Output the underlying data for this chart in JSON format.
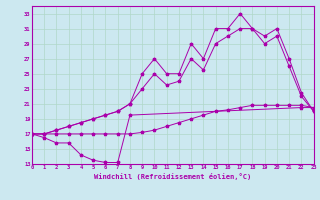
{
  "xlabel": "Windchill (Refroidissement éolien,°C)",
  "background_color": "#cce8f0",
  "grid_color": "#b0d8c8",
  "line_color": "#aa00aa",
  "xmin": 0,
  "xmax": 23,
  "ymin": 13,
  "ymax": 34,
  "yticks": [
    13,
    15,
    17,
    19,
    21,
    23,
    25,
    27,
    29,
    31,
    33
  ],
  "xticks": [
    0,
    1,
    2,
    3,
    4,
    5,
    6,
    7,
    8,
    9,
    10,
    11,
    12,
    13,
    14,
    15,
    16,
    17,
    18,
    19,
    20,
    21,
    22,
    23
  ],
  "line_dip_x": [
    0,
    1,
    2,
    3,
    4,
    5,
    6,
    7,
    8,
    22,
    23
  ],
  "line_dip_y": [
    17,
    16.5,
    15.8,
    15.8,
    14.2,
    13.5,
    13.2,
    13.2,
    19.5,
    20.5,
    20.5
  ],
  "line_flat_x": [
    0,
    1,
    2,
    3,
    4,
    5,
    6,
    7,
    8,
    9,
    10,
    11,
    12,
    13,
    14,
    15,
    16,
    17,
    18,
    19,
    20,
    21,
    22,
    23
  ],
  "line_flat_y": [
    17,
    17,
    17,
    17,
    17,
    17,
    17,
    17,
    17,
    17.2,
    17.5,
    18,
    18.5,
    19,
    19.5,
    20,
    20.2,
    20.5,
    20.8,
    20.8,
    20.8,
    20.8,
    20.8,
    20.5
  ],
  "line_hi_x": [
    0,
    1,
    2,
    3,
    4,
    5,
    6,
    7,
    8,
    9,
    10,
    11,
    12,
    13,
    14,
    15,
    16,
    17,
    18,
    19,
    20,
    21,
    22,
    23
  ],
  "line_hi_y": [
    17,
    17,
    17.5,
    18,
    18.5,
    19,
    19.5,
    20,
    21,
    25,
    27,
    25,
    25,
    29,
    27,
    31,
    31,
    33,
    31,
    30,
    31,
    27,
    22.5,
    20
  ],
  "line_mid_x": [
    0,
    1,
    2,
    3,
    4,
    5,
    6,
    7,
    8,
    9,
    10,
    11,
    12,
    13,
    14,
    15,
    16,
    17,
    18,
    19,
    20,
    21,
    22,
    23
  ],
  "line_mid_y": [
    17,
    17,
    17.5,
    18,
    18.5,
    19,
    19.5,
    20,
    21,
    23,
    25,
    23.5,
    24,
    27,
    25.5,
    29,
    30,
    31,
    31,
    29,
    30,
    26,
    22,
    20
  ]
}
